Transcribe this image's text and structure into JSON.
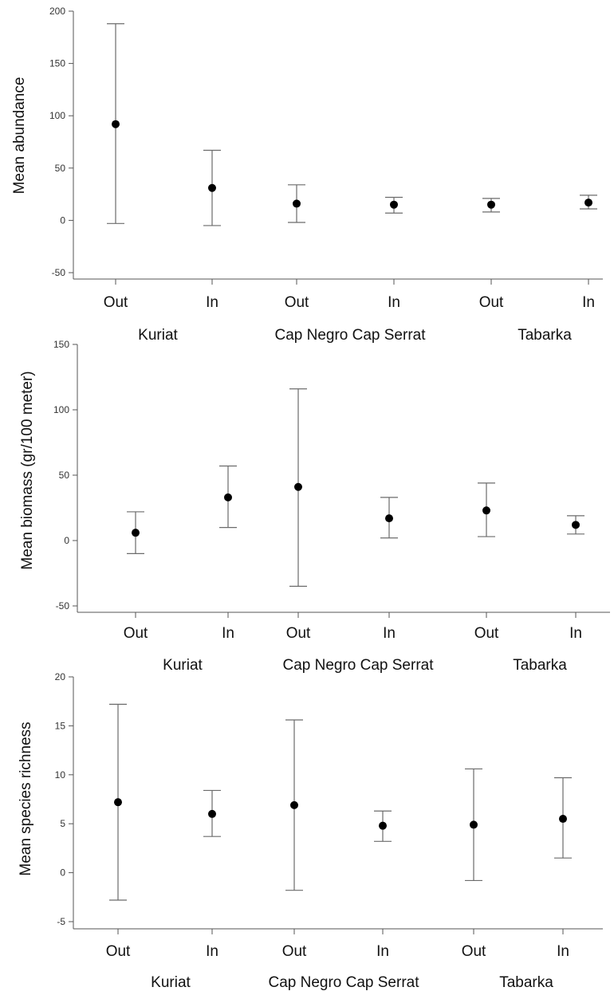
{
  "chart_data": [
    {
      "type": "scatter",
      "title": "",
      "ylabel": "Mean abundance",
      "ylim": [
        -50,
        200
      ],
      "yticks": [
        -50,
        0,
        50,
        100,
        150,
        200
      ],
      "categories": [
        "Out",
        "In",
        "Out",
        "In",
        "Out",
        "In"
      ],
      "site_labels": [
        "Kuriat",
        "Cap Negro Cap Serrat",
        "Tabarka"
      ],
      "values": [
        92,
        31,
        16,
        15,
        15,
        17
      ],
      "upper": [
        188,
        67,
        34,
        22,
        21,
        24
      ],
      "lower": [
        -3,
        -5,
        -2,
        7,
        8,
        11
      ]
    },
    {
      "type": "scatter",
      "title": "",
      "ylabel": "Mean biomass (gr/100 meter)",
      "ylim": [
        -50,
        150
      ],
      "yticks": [
        -50,
        0,
        50,
        100,
        150
      ],
      "categories": [
        "Out",
        "In",
        "Out",
        "In",
        "Out",
        "In"
      ],
      "site_labels": [
        "Kuriat",
        "Cap Negro Cap Serrat",
        "Tabarka"
      ],
      "values": [
        6,
        33,
        41,
        17,
        23,
        12
      ],
      "upper": [
        22,
        57,
        116,
        33,
        44,
        19
      ],
      "lower": [
        -10,
        10,
        -35,
        2,
        3,
        5
      ]
    },
    {
      "type": "scatter",
      "title": "",
      "ylabel": "Mean species richness",
      "ylim": [
        -5,
        20
      ],
      "yticks": [
        -5,
        0,
        5,
        10,
        15,
        20
      ],
      "categories": [
        "Out",
        "In",
        "Out",
        "In",
        "Out",
        "In"
      ],
      "site_labels": [
        "Kuriat",
        "Cap Negro Cap Serrat",
        "Tabarka"
      ],
      "values": [
        7.2,
        6.0,
        6.9,
        4.8,
        4.9,
        5.5
      ],
      "upper": [
        17.2,
        8.4,
        15.6,
        6.3,
        10.6,
        9.7
      ],
      "lower": [
        -2.8,
        3.7,
        -1.8,
        3.2,
        -0.8,
        1.5
      ]
    }
  ]
}
